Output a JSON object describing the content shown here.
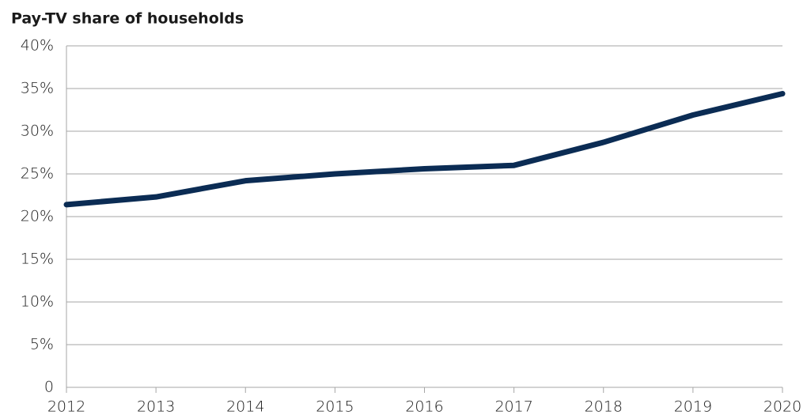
{
  "chart_data": {
    "type": "line",
    "title": "Pay-TV share of households",
    "x": [
      2012,
      2013,
      2014,
      2015,
      2016,
      2017,
      2018,
      2019,
      2020
    ],
    "values": [
      21.4,
      22.3,
      24.2,
      25.0,
      25.6,
      26.0,
      28.7,
      31.9,
      34.4
    ],
    "color": "#0b2c54",
    "xlim": [
      2012,
      2020
    ],
    "xticks": [
      2012,
      2013,
      2014,
      2015,
      2016,
      2017,
      2018,
      2019,
      2020
    ],
    "ylim": [
      0,
      40
    ],
    "yticks": [
      0,
      {
        "value": 5,
        "label": "5%"
      },
      {
        "value": 10,
        "label": "10%"
      },
      {
        "value": 15,
        "label": "15%"
      },
      {
        "value": 20,
        "label": "20%"
      },
      {
        "value": 25,
        "label": "25%"
      },
      {
        "value": 30,
        "label": "30%"
      },
      {
        "value": 35,
        "label": "35%"
      },
      {
        "value": 40,
        "label": "40%"
      }
    ],
    "grid": true
  }
}
